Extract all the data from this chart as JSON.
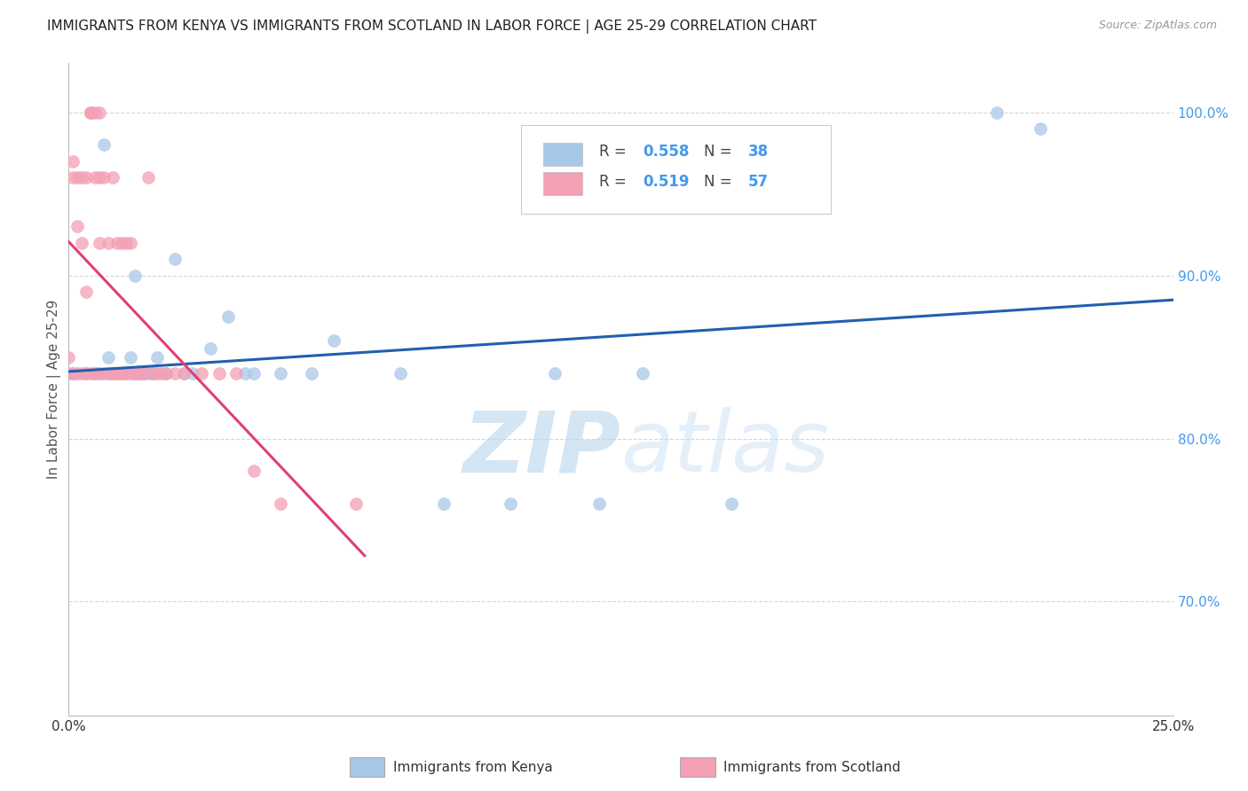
{
  "title": "IMMIGRANTS FROM KENYA VS IMMIGRANTS FROM SCOTLAND IN LABOR FORCE | AGE 25-29 CORRELATION CHART",
  "source": "Source: ZipAtlas.com",
  "ylabel": "In Labor Force | Age 25-29",
  "xlim": [
    0.0,
    0.25
  ],
  "ylim": [
    0.63,
    1.03
  ],
  "yticks": [
    0.7,
    0.8,
    0.9,
    1.0
  ],
  "ytick_labels": [
    "70.0%",
    "80.0%",
    "90.0%",
    "100.0%"
  ],
  "xticks": [
    0.0,
    0.05,
    0.1,
    0.15,
    0.2,
    0.25
  ],
  "xtick_labels": [
    "0.0%",
    "",
    "",
    "",
    "",
    "25.0%"
  ],
  "kenya_R": 0.558,
  "kenya_N": 38,
  "scotland_R": 0.519,
  "scotland_N": 57,
  "kenya_color": "#a8c8e8",
  "scotland_color": "#f4a0b5",
  "kenya_line_color": "#2060b0",
  "scotland_line_color": "#e04070",
  "kenya_scatter_x": [
    0.001,
    0.004,
    0.006,
    0.007,
    0.008,
    0.009,
    0.009,
    0.01,
    0.011,
    0.012,
    0.013,
    0.014,
    0.015,
    0.016,
    0.017,
    0.018,
    0.019,
    0.02,
    0.022,
    0.024,
    0.026,
    0.028,
    0.032,
    0.036,
    0.04,
    0.042,
    0.048,
    0.055,
    0.06,
    0.075,
    0.085,
    0.1,
    0.11,
    0.12,
    0.13,
    0.15,
    0.21,
    0.22
  ],
  "kenya_scatter_y": [
    0.84,
    0.84,
    0.84,
    0.84,
    0.98,
    0.84,
    0.85,
    0.84,
    0.84,
    0.84,
    0.84,
    0.85,
    0.9,
    0.84,
    0.84,
    0.84,
    0.84,
    0.85,
    0.84,
    0.91,
    0.84,
    0.84,
    0.855,
    0.875,
    0.84,
    0.84,
    0.84,
    0.84,
    0.86,
    0.84,
    0.76,
    0.76,
    0.84,
    0.76,
    0.84,
    0.76,
    1.0,
    0.99
  ],
  "scotland_scatter_x": [
    0.0,
    0.0,
    0.001,
    0.001,
    0.001,
    0.002,
    0.002,
    0.002,
    0.003,
    0.003,
    0.003,
    0.004,
    0.004,
    0.004,
    0.005,
    0.005,
    0.005,
    0.005,
    0.006,
    0.006,
    0.006,
    0.007,
    0.007,
    0.007,
    0.007,
    0.008,
    0.008,
    0.009,
    0.009,
    0.01,
    0.01,
    0.01,
    0.011,
    0.011,
    0.012,
    0.012,
    0.013,
    0.013,
    0.014,
    0.014,
    0.015,
    0.015,
    0.016,
    0.017,
    0.018,
    0.019,
    0.02,
    0.021,
    0.022,
    0.024,
    0.026,
    0.03,
    0.034,
    0.038,
    0.042,
    0.048,
    0.065
  ],
  "scotland_scatter_y": [
    0.84,
    0.85,
    0.97,
    0.96,
    0.84,
    0.96,
    0.84,
    0.93,
    0.96,
    0.84,
    0.92,
    0.96,
    0.84,
    0.89,
    1.0,
    1.0,
    1.0,
    0.84,
    1.0,
    0.96,
    0.84,
    1.0,
    0.96,
    0.92,
    0.84,
    0.96,
    0.84,
    0.92,
    0.84,
    0.96,
    0.84,
    0.84,
    0.92,
    0.84,
    0.84,
    0.92,
    0.84,
    0.92,
    0.84,
    0.92,
    0.84,
    0.84,
    0.84,
    0.84,
    0.96,
    0.84,
    0.84,
    0.84,
    0.84,
    0.84,
    0.84,
    0.84,
    0.84,
    0.84,
    0.78,
    0.76,
    0.76
  ],
  "background_color": "#ffffff",
  "watermark_zip_color": "#c8dff0",
  "watermark_atlas_color": "#d8e8f5",
  "grid_color": "#cccccc",
  "ytick_color": "#4499ee",
  "xtick_color": "#333333"
}
